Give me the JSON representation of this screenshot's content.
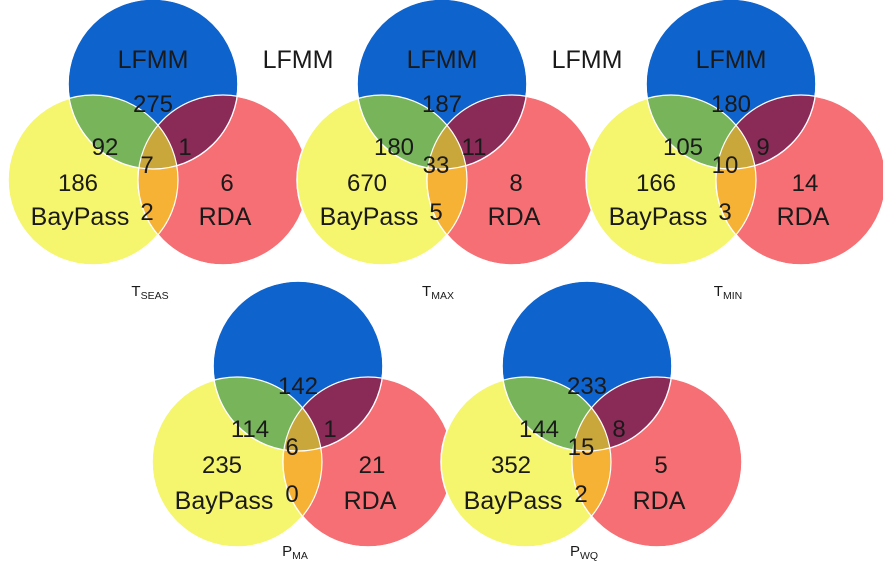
{
  "colors": {
    "lfmm": "#0f63cd",
    "baypass": "#f5f56e",
    "rda": "#f56f74",
    "lfmm_baypass": "#77b45a",
    "lfmm_rda": "#8a2b57",
    "baypass_rda": "#f6b235",
    "all_three": "#c9a73b",
    "outline": "#ffffff"
  },
  "diagrams": [
    {
      "caption": {
        "main": "T",
        "sub": "SEAS"
      },
      "labels": {
        "lfmm": "LFMM",
        "baypass": "BayPass",
        "rda": "RDA"
      },
      "counts": {
        "lfmm_only": "275",
        "baypass_only": "186",
        "rda_only": "6",
        "lfmm_baypass": "92",
        "lfmm_rda": "1",
        "baypass_rda": "2",
        "all_three": "7"
      }
    },
    {
      "caption": {
        "main": "T",
        "sub": "MAX"
      },
      "labels": {
        "lfmm": "LFMM",
        "baypass": "BayPass",
        "rda": "RDA"
      },
      "counts": {
        "lfmm_only": "187",
        "baypass_only": "670",
        "rda_only": "8",
        "lfmm_baypass": "180",
        "lfmm_rda": "11",
        "baypass_rda": "5",
        "all_three": "33"
      }
    },
    {
      "caption": {
        "main": "T",
        "sub": "MIN"
      },
      "labels": {
        "lfmm": "LFMM",
        "baypass": "BayPass",
        "rda": "RDA"
      },
      "counts": {
        "lfmm_only": "180",
        "baypass_only": "166",
        "rda_only": "14",
        "lfmm_baypass": "105",
        "lfmm_rda": "9",
        "baypass_rda": "3",
        "all_three": "10"
      }
    },
    {
      "caption": {
        "main": "P",
        "sub": "MA"
      },
      "labels": {
        "lfmm": "LFMM",
        "baypass": "BayPass",
        "rda": "RDA"
      },
      "counts": {
        "lfmm_only": "142",
        "baypass_only": "235",
        "rda_only": "21",
        "lfmm_baypass": "114",
        "lfmm_rda": "1",
        "baypass_rda": "0",
        "all_three": "6"
      }
    },
    {
      "caption": {
        "main": "P",
        "sub": "WQ"
      },
      "labels": {
        "lfmm": "LFMM",
        "baypass": "BayPass",
        "rda": "RDA"
      },
      "counts": {
        "lfmm_only": "233",
        "baypass_only": "352",
        "rda_only": "5",
        "lfmm_baypass": "144",
        "lfmm_rda": "8",
        "baypass_rda": "2",
        "all_three": "15"
      }
    }
  ]
}
